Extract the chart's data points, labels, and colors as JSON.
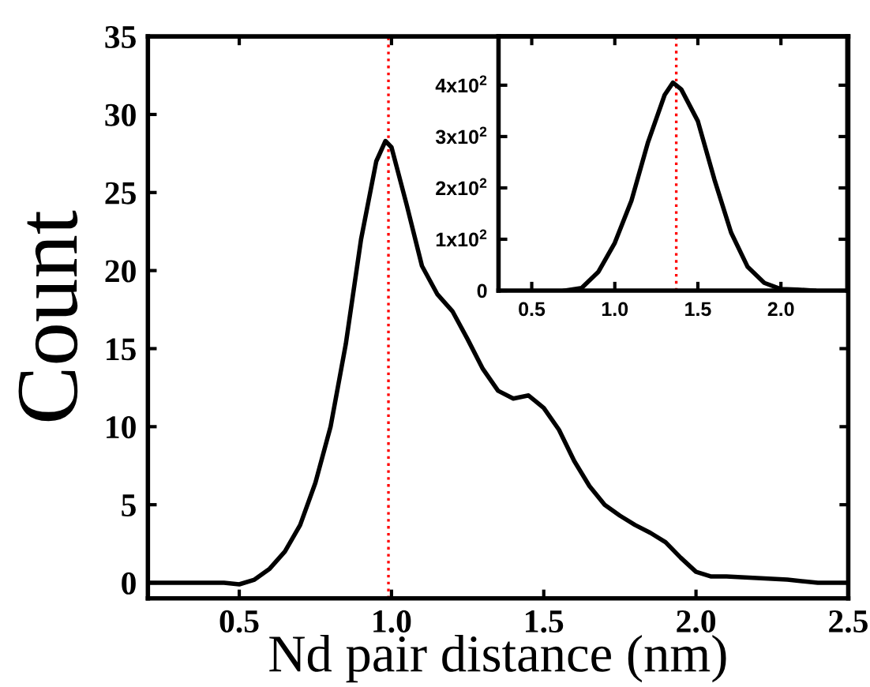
{
  "chart_data": [
    {
      "type": "line",
      "xlabel": "Nd pair distance (nm)",
      "ylabel": "Count",
      "xlim": [
        0.2,
        2.5
      ],
      "ylim": [
        -1,
        35
      ],
      "xticks": [
        {
          "value": 0.5,
          "label": "0.5"
        },
        {
          "value": 1.0,
          "label": "1.0"
        },
        {
          "value": 1.5,
          "label": "1.5"
        },
        {
          "value": 2.0,
          "label": "2.0"
        },
        {
          "value": 2.5,
          "label": "2.5"
        }
      ],
      "yticks": [
        0,
        5,
        10,
        15,
        20,
        25,
        30,
        35
      ],
      "legend": false,
      "marker": "none",
      "line_style": "solid",
      "series": [
        {
          "color": "#000000",
          "x": [
            0.2,
            0.45,
            0.5,
            0.55,
            0.6,
            0.65,
            0.7,
            0.75,
            0.8,
            0.85,
            0.9,
            0.95,
            0.98,
            1.0,
            1.05,
            1.1,
            1.15,
            1.2,
            1.25,
            1.3,
            1.35,
            1.4,
            1.45,
            1.5,
            1.55,
            1.6,
            1.65,
            1.7,
            1.75,
            1.8,
            1.85,
            1.9,
            1.95,
            2.0,
            2.05,
            2.1,
            2.2,
            2.3,
            2.4,
            2.5
          ],
          "values": [
            0,
            0,
            -0.1,
            0.2,
            0.9,
            2.0,
            3.7,
            6.4,
            10,
            15.3,
            22,
            27,
            28.3,
            27.9,
            24.2,
            20.3,
            18.5,
            17.4,
            15.6,
            13.7,
            12.3,
            11.8,
            12.0,
            11.2,
            9.8,
            7.8,
            6.2,
            5.0,
            4.3,
            3.7,
            3.2,
            2.6,
            1.6,
            0.7,
            0.4,
            0.4,
            0.3,
            0.2,
            0,
            0
          ]
        }
      ],
      "ref_lines": [
        {
          "axis": "x",
          "value": 0.99,
          "color": "#ff0000",
          "line_style": "dotted"
        }
      ]
    },
    {
      "type": "line",
      "xlim": [
        0.3,
        2.4
      ],
      "ylim": [
        0,
        495
      ],
      "xticks": [
        {
          "value": 0.5,
          "label": "0.5"
        },
        {
          "value": 1.0,
          "label": "1.0"
        },
        {
          "value": 1.5,
          "label": "1.5"
        },
        {
          "value": 2.0,
          "label": "2.0"
        }
      ],
      "yticks": [
        0,
        {
          "value": 100,
          "label": "1x10$^{2}$"
        },
        {
          "value": 200,
          "label": "2x10$^{2}$"
        },
        {
          "value": 300,
          "label": "3x10$^{2}$"
        },
        {
          "value": 400,
          "label": "4x10$^{2}$"
        }
      ],
      "legend": false,
      "marker": "none",
      "line_style": "solid",
      "series": [
        {
          "color": "#000000",
          "x": [
            0.7,
            0.8,
            0.9,
            1.0,
            1.1,
            1.2,
            1.3,
            1.35,
            1.4,
            1.5,
            1.6,
            1.7,
            1.8,
            1.9,
            2.0,
            2.1,
            2.2
          ],
          "values": [
            0,
            5,
            36,
            93,
            175,
            289,
            381,
            405,
            392,
            330,
            216,
            113,
            46,
            15,
            3,
            2,
            0
          ]
        }
      ],
      "ref_lines": [
        {
          "axis": "x",
          "value": 1.37,
          "color": "#ff0000",
          "line_style": "dotted"
        }
      ]
    }
  ]
}
